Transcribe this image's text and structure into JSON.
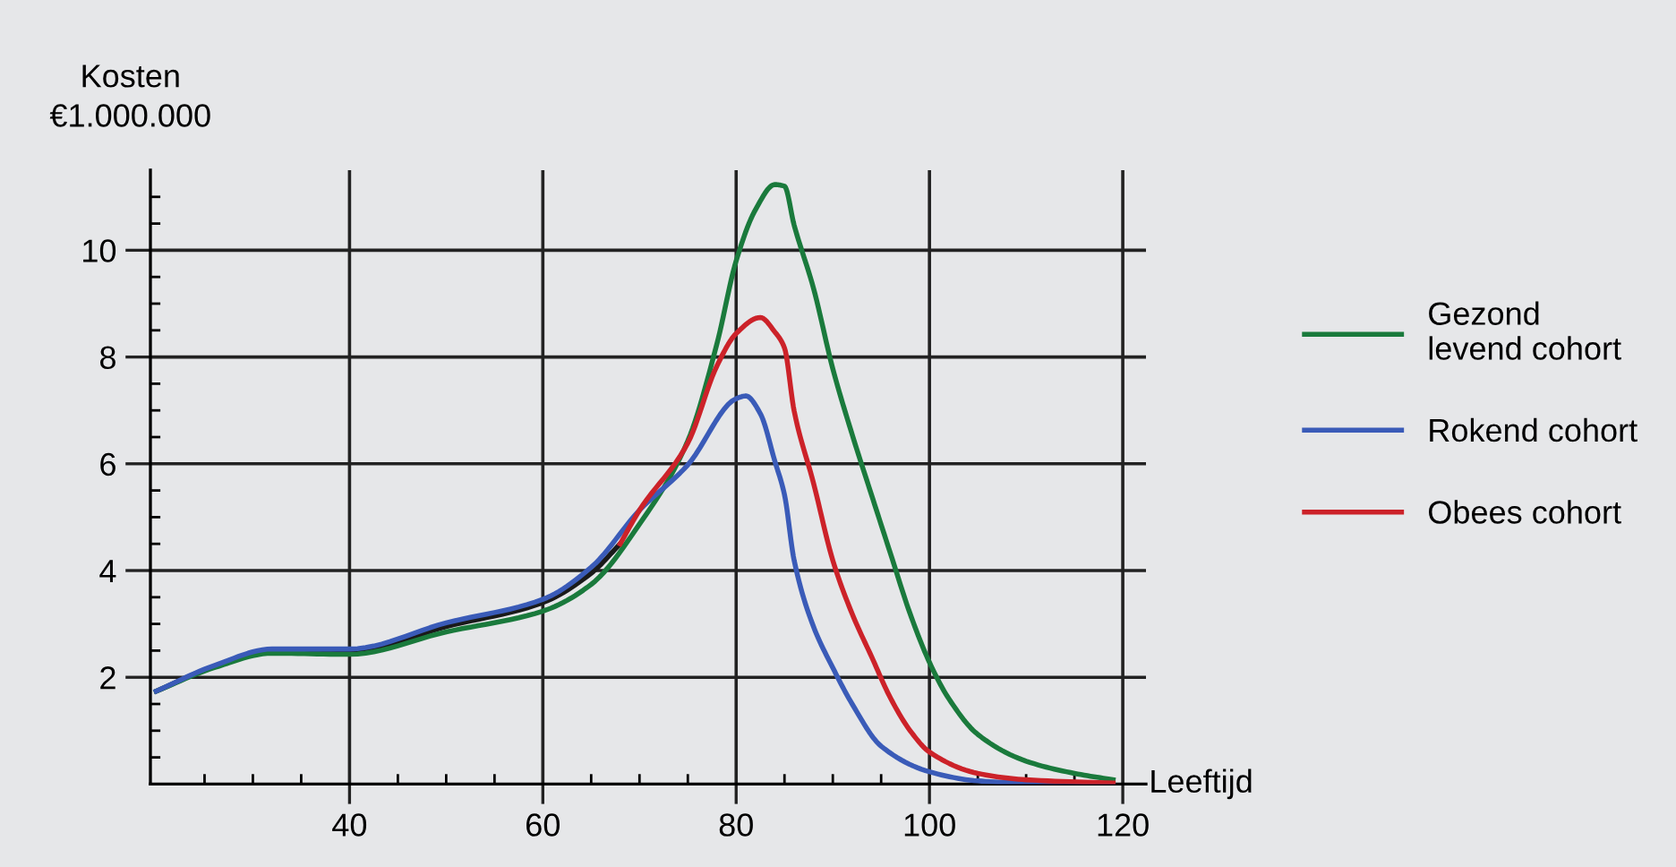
{
  "chart_data": {
    "type": "line",
    "ylabel": "Kosten\n€1.000.000",
    "xlabel": "Leeftijd",
    "xlim": [
      19.4,
      122.4
    ],
    "ylim": [
      0,
      11.5
    ],
    "xticks": [
      {
        "value": 25,
        "label": null
      },
      {
        "value": 30,
        "label": null
      },
      {
        "value": 35,
        "label": null
      },
      40,
      {
        "value": 45,
        "label": null
      },
      {
        "value": 50,
        "label": null
      },
      {
        "value": 55,
        "label": null
      },
      60,
      {
        "value": 65,
        "label": null
      },
      {
        "value": 70,
        "label": null
      },
      {
        "value": 75,
        "label": null
      },
      80,
      {
        "value": 85,
        "label": null
      },
      {
        "value": 90,
        "label": null
      },
      {
        "value": 95,
        "label": null
      },
      100,
      {
        "value": 105,
        "label": null
      },
      {
        "value": 110,
        "label": null
      },
      {
        "value": 115,
        "label": null
      },
      120
    ],
    "yticks": [
      {
        "value": 0.5,
        "label": null
      },
      {
        "value": 1,
        "label": null
      },
      {
        "value": 1.5,
        "label": null
      },
      2,
      {
        "value": 2.5,
        "label": null
      },
      {
        "value": 3,
        "label": null
      },
      {
        "value": 3.5,
        "label": null
      },
      4,
      {
        "value": 4.5,
        "label": null
      },
      {
        "value": 5,
        "label": null
      },
      {
        "value": 5.5,
        "label": null
      },
      6,
      {
        "value": 6.5,
        "label": null
      },
      {
        "value": 7,
        "label": null
      },
      {
        "value": 7.5,
        "label": null
      },
      8,
      {
        "value": 8.5,
        "label": null
      },
      {
        "value": 9,
        "label": null
      },
      {
        "value": 9.5,
        "label": null
      },
      10,
      {
        "value": 10.5,
        "label": null
      },
      {
        "value": 11,
        "label": null
      }
    ],
    "grid": true,
    "legend": "right",
    "marker": "none",
    "line_style": "solid",
    "series": [
      {
        "color": "#1a1a1a",
        "x": [
          20,
          26,
          32,
          40,
          50,
          60,
          65,
          68
        ],
        "values": [
          1.74,
          2.2,
          2.47,
          2.47,
          2.95,
          3.4,
          3.95,
          4.5
        ]
      },
      {
        "name": "Gezond\nlevend cohort",
        "color": "#1a7a3c",
        "x": [
          20,
          26,
          32,
          40,
          50,
          60,
          65,
          70,
          75,
          78,
          80,
          82,
          84,
          85,
          86,
          88,
          90,
          92,
          94,
          96,
          98,
          100,
          102,
          105,
          110,
          115,
          119
        ],
        "values": [
          1.74,
          2.18,
          2.45,
          2.43,
          2.85,
          3.24,
          3.74,
          4.87,
          6.43,
          8.24,
          9.8,
          10.76,
          11.23,
          11.2,
          10.47,
          9.29,
          7.78,
          6.55,
          5.42,
          4.3,
          3.19,
          2.28,
          1.6,
          0.93,
          0.43,
          0.2,
          0.08
        ]
      },
      {
        "name": "Rokend cohort",
        "color": "#3a5bb8",
        "x": [
          20,
          26,
          32,
          40,
          50,
          60,
          65,
          70,
          75,
          80,
          81,
          82.5,
          84,
          85,
          86,
          88,
          90,
          92,
          95,
          100,
          105,
          110,
          119
        ],
        "values": [
          1.74,
          2.22,
          2.53,
          2.53,
          3.02,
          3.46,
          4.06,
          5.13,
          5.98,
          7.22,
          7.27,
          6.94,
          6.05,
          5.42,
          4.19,
          2.95,
          2.18,
          1.5,
          0.71,
          0.23,
          0.06,
          0.02,
          0
        ]
      },
      {
        "name": "Obees cohort",
        "color": "#cc2229",
        "x": [
          68,
          70,
          75,
          78,
          80,
          82.5,
          84,
          85,
          86,
          88,
          90,
          92,
          94,
          96,
          98,
          100,
          105,
          110,
          119
        ],
        "values": [
          4.5,
          5.13,
          6.39,
          7.83,
          8.44,
          8.74,
          8.47,
          8.17,
          6.99,
          5.64,
          4.19,
          3.19,
          2.39,
          1.6,
          1.0,
          0.6,
          0.2,
          0.08,
          0.02
        ]
      }
    ]
  }
}
